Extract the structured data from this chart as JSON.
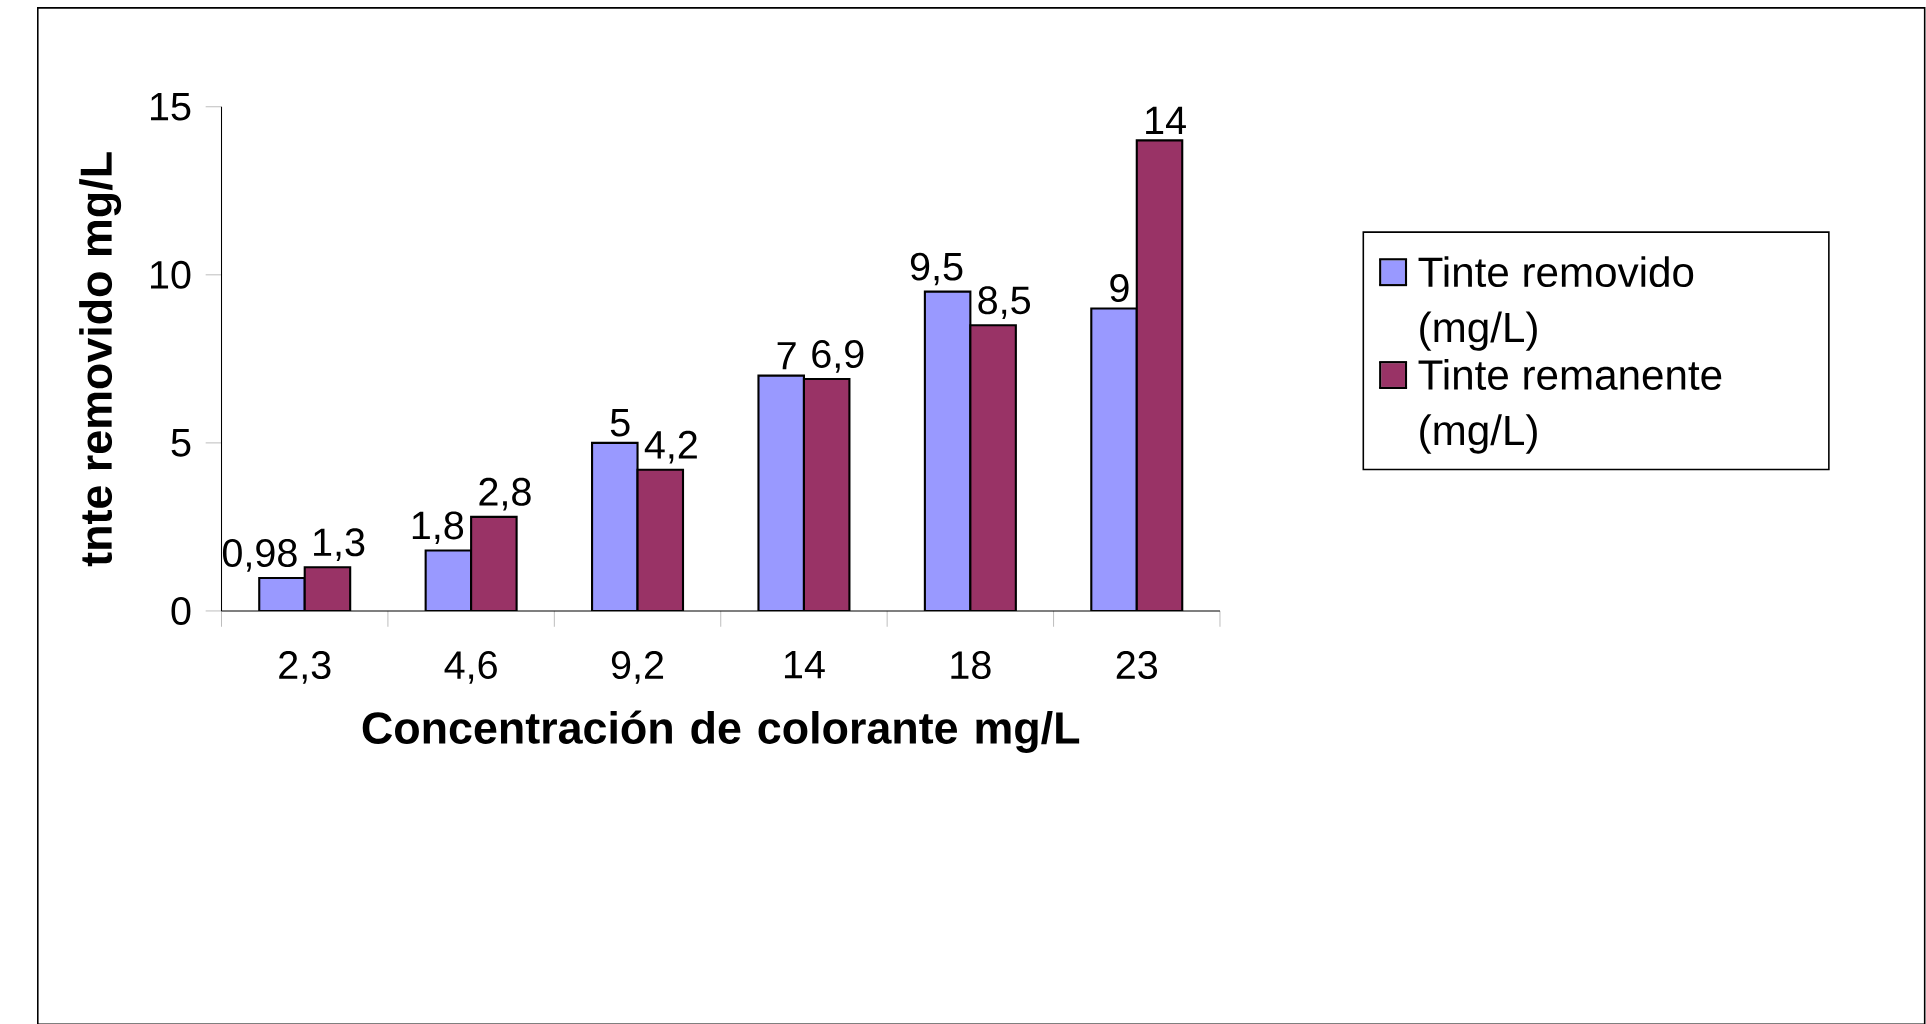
{
  "chart_data": {
    "type": "bar",
    "xlabel": "Concentración de colorante mg/L",
    "ylabel": "tnte removido mg/L",
    "categories": [
      "2,3",
      "4,6",
      "9,2",
      "14",
      "18",
      "23"
    ],
    "series": [
      {
        "name": "Tinte removido (mg/L)",
        "color": "#9999ff",
        "values": [
          0.98,
          1.8,
          5,
          7,
          9.5,
          9
        ],
        "value_labels": [
          "0,98",
          "1,8",
          "5",
          "7",
          "9,5",
          "9"
        ]
      },
      {
        "name": "Tinte remanente (mg/L)",
        "color": "#993366",
        "values": [
          1.3,
          2.8,
          4.2,
          6.9,
          8.5,
          14
        ],
        "value_labels": [
          "1,3",
          "2,8",
          "4,2",
          "6,9",
          "8,5",
          "14"
        ]
      }
    ],
    "ylim": [
      0,
      15
    ],
    "yticks": [
      0,
      5,
      10,
      15
    ],
    "grid": false,
    "legend": "right"
  }
}
